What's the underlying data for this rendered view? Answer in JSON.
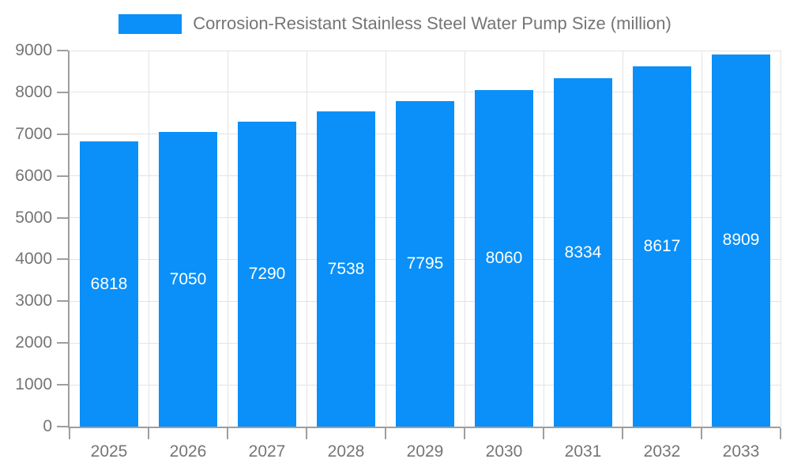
{
  "chart_data": {
    "type": "bar",
    "title": "Corrosion-Resistant Stainless Steel Water Pump Size (million)",
    "categories": [
      "2025",
      "2026",
      "2027",
      "2028",
      "2029",
      "2030",
      "2031",
      "2032",
      "2033"
    ],
    "values": [
      6818,
      7050,
      7290,
      7538,
      7795,
      8060,
      8334,
      8617,
      8909
    ],
    "xlabel": "",
    "ylabel": "",
    "ylim": [
      0,
      9000
    ],
    "ytick_step": 1000,
    "grid": true,
    "legend_position": "top",
    "bar_color": "#0a90f8",
    "bar_label_color": "#ffffff",
    "axis_text_color": "#757575",
    "axis_line_color": "#9e9e9e",
    "grid_color": "#e3e3e3",
    "background_color": "#ffffff"
  }
}
